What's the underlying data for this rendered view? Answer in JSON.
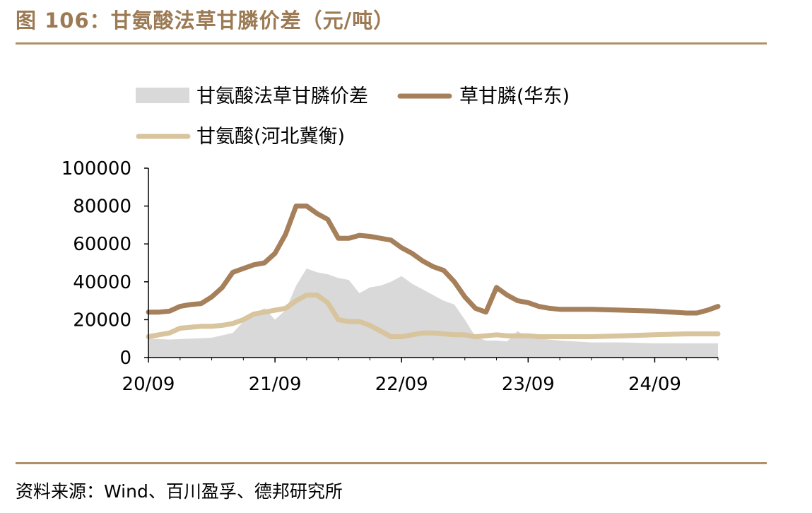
{
  "header": {
    "title": "图 106：甘氨酸法草甘膦价差（元/吨）"
  },
  "footer": {
    "source": "资料来源：Wind、百川盈孚、德邦研究所"
  },
  "colors": {
    "accent": "#9b7a54",
    "spread": "#d9d9d9",
    "glyphosate": "#a6805b",
    "glycine": "#d8c49d"
  },
  "chart_data": {
    "type": "line",
    "title": "",
    "xlabel": "",
    "ylabel": "",
    "ylim": [
      0,
      100000
    ],
    "yticks": [
      "0",
      "20000",
      "40000",
      "60000",
      "80000",
      "100000"
    ],
    "xticks": [
      "20/09",
      "21/09",
      "22/09",
      "23/09",
      "24/09"
    ],
    "x_range": [
      "2020-09",
      "2025-03"
    ],
    "grid": false,
    "legend": "top",
    "series": [
      {
        "name": "甘氨酸法草甘膦价差",
        "kind": "area",
        "x": [
          "2020-09",
          "2020-11",
          "2021-01",
          "2021-03",
          "2021-05",
          "2021-06",
          "2021-07",
          "2021-08",
          "2021-09",
          "2021-10",
          "2021-11",
          "2021-12",
          "2022-01",
          "2022-02",
          "2022-03",
          "2022-04",
          "2022-05",
          "2022-06",
          "2022-07",
          "2022-08",
          "2022-09",
          "2022-10",
          "2022-11",
          "2022-12",
          "2023-01",
          "2023-02",
          "2023-03",
          "2023-04",
          "2023-05",
          "2023-06",
          "2023-07",
          "2023-08",
          "2023-09",
          "2023-12",
          "2024-03",
          "2024-06",
          "2024-09",
          "2024-12",
          "2025-03"
        ],
        "values": [
          10000,
          9500,
          10000,
          10500,
          13000,
          19000,
          23000,
          26000,
          20000,
          25000,
          38000,
          47000,
          45000,
          44000,
          42000,
          41000,
          34000,
          37000,
          38000,
          40000,
          43000,
          39000,
          36000,
          33000,
          30000,
          28000,
          20000,
          11000,
          9000,
          9000,
          8500,
          14000,
          10500,
          9000,
          8000,
          8000,
          7500,
          7500,
          7500
        ]
      },
      {
        "name": "草甘膦(华东)",
        "kind": "line",
        "x": [
          "2020-09",
          "2020-10",
          "2020-11",
          "2020-12",
          "2021-01",
          "2021-02",
          "2021-03",
          "2021-04",
          "2021-05",
          "2021-06",
          "2021-07",
          "2021-08",
          "2021-09",
          "2021-10",
          "2021-11",
          "2021-12",
          "2022-01",
          "2022-02",
          "2022-03",
          "2022-04",
          "2022-05",
          "2022-06",
          "2022-07",
          "2022-08",
          "2022-09",
          "2022-10",
          "2022-11",
          "2022-12",
          "2023-01",
          "2023-02",
          "2023-03",
          "2023-04",
          "2023-05",
          "2023-06",
          "2023-07",
          "2023-08",
          "2023-09",
          "2023-10",
          "2023-11",
          "2023-12",
          "2024-01",
          "2024-03",
          "2024-06",
          "2024-09",
          "2024-12",
          "2025-01",
          "2025-02",
          "2025-03"
        ],
        "values": [
          24000,
          24000,
          24500,
          27000,
          28000,
          28500,
          32000,
          37000,
          45000,
          47000,
          49000,
          50000,
          55000,
          65000,
          80000,
          80000,
          76000,
          73000,
          63000,
          63000,
          64500,
          64000,
          63000,
          62000,
          58000,
          55000,
          51000,
          48000,
          46000,
          40000,
          32000,
          26000,
          24000,
          37000,
          33000,
          30000,
          29000,
          27000,
          26000,
          25500,
          25500,
          25500,
          25000,
          24500,
          23500,
          23500,
          25000,
          27000
        ]
      },
      {
        "name": "甘氨酸(河北冀衡)",
        "kind": "line",
        "x": [
          "2020-09",
          "2020-10",
          "2020-11",
          "2020-12",
          "2021-01",
          "2021-02",
          "2021-03",
          "2021-04",
          "2021-05",
          "2021-06",
          "2021-07",
          "2021-08",
          "2021-09",
          "2021-10",
          "2021-11",
          "2021-12",
          "2022-01",
          "2022-02",
          "2022-03",
          "2022-04",
          "2022-05",
          "2022-06",
          "2022-07",
          "2022-08",
          "2022-09",
          "2022-10",
          "2022-11",
          "2022-12",
          "2023-01",
          "2023-02",
          "2023-03",
          "2023-04",
          "2023-05",
          "2023-06",
          "2023-07",
          "2023-08",
          "2023-09",
          "2023-10",
          "2023-12",
          "2024-03",
          "2024-06",
          "2024-09",
          "2024-12",
          "2025-03"
        ],
        "values": [
          11000,
          12000,
          13000,
          15500,
          16000,
          16500,
          16500,
          17000,
          18000,
          20000,
          23000,
          24000,
          25000,
          26000,
          30000,
          33000,
          33000,
          29000,
          20000,
          19000,
          19000,
          17000,
          14000,
          11000,
          11000,
          12000,
          13000,
          13000,
          12500,
          12000,
          12000,
          11000,
          11500,
          12000,
          11500,
          11500,
          11500,
          11000,
          11000,
          11000,
          11500,
          12000,
          12500,
          12500
        ]
      }
    ]
  }
}
